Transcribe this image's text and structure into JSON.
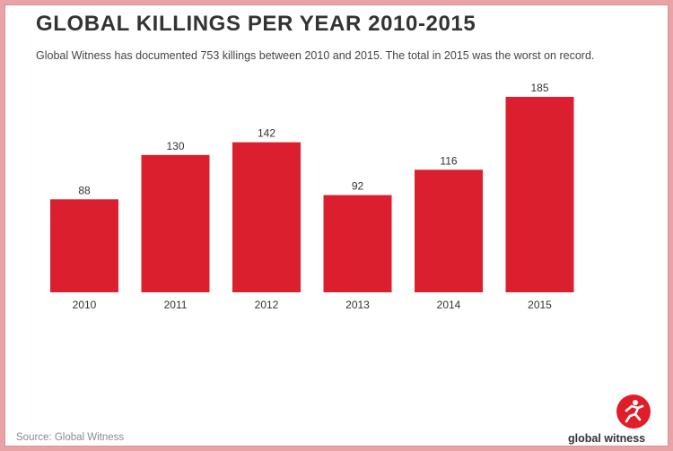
{
  "colors": {
    "bar": "#dc1f2e",
    "title": "#333333",
    "background": "#ffffff",
    "outer_border": "#e7a3a6",
    "logo": "#e11d2a"
  },
  "header": {
    "title": "GLOBAL KILLINGS PER YEAR 2010-2015",
    "subtitle": "Global Witness has documented 753 killings between 2010 and 2015. The total in 2015 was the worst on record."
  },
  "footer": {
    "source": "Source: Global Witness",
    "brand": "global witness",
    "brand_logo_icon": "global-witness-logo-icon"
  },
  "chart_data": {
    "type": "bar",
    "title": "GLOBAL KILLINGS PER YEAR 2010-2015",
    "subtitle": "Global Witness has documented 753 killings between 2010 and 2015. The total in 2015 was the worst on record.",
    "xlabel": "",
    "ylabel": "",
    "categories": [
      "2010",
      "2011",
      "2012",
      "2013",
      "2014",
      "2015"
    ],
    "values": [
      88,
      130,
      142,
      92,
      116,
      185
    ],
    "ylim": [
      0,
      185
    ],
    "grid": false,
    "legend": "none",
    "data_labels": true
  }
}
